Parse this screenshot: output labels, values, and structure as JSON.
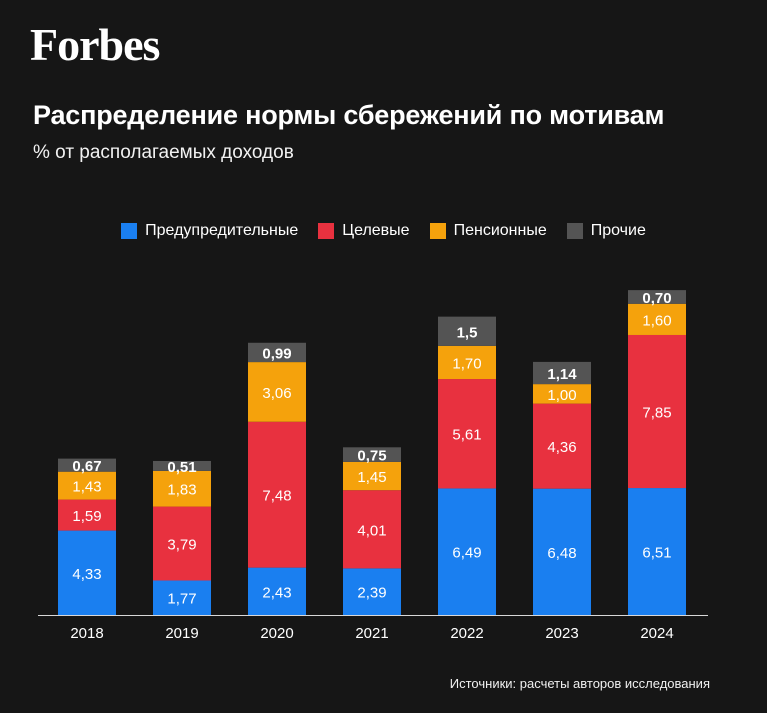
{
  "logo": "Forbes",
  "title": "Распределение нормы сбережений по мотивам",
  "subtitle": "% от располагаемых доходов",
  "source": "Источники: расчеты авторов исследования",
  "colors": {
    "background": "#161616",
    "precautionary": "#1a7ff0",
    "target": "#e8313f",
    "pension": "#f5a20c",
    "other": "#545454"
  },
  "chart_data": {
    "type": "bar",
    "stacked": true,
    "categories": [
      "2018",
      "2019",
      "2020",
      "2021",
      "2022",
      "2023",
      "2024"
    ],
    "series": [
      {
        "name": "Предупредительные",
        "color": "#1a7ff0",
        "values": [
          4.33,
          1.77,
          2.43,
          2.39,
          6.49,
          6.48,
          6.51
        ],
        "labels": [
          "4,33",
          "1,77",
          "2,43",
          "2,39",
          "6,49",
          "6,48",
          "6,51"
        ]
      },
      {
        "name": "Целевые",
        "color": "#e8313f",
        "values": [
          1.59,
          3.79,
          7.48,
          4.01,
          5.61,
          4.36,
          7.85
        ],
        "labels": [
          "1,59",
          "3,79",
          "7,48",
          "4,01",
          "5,61",
          "4,36",
          "7,85"
        ]
      },
      {
        "name": "Пенсионные",
        "color": "#f5a20c",
        "values": [
          1.43,
          1.83,
          3.06,
          1.45,
          1.7,
          1.0,
          1.6
        ],
        "labels": [
          "1,43",
          "1,83",
          "3,06",
          "1,45",
          "1,70",
          "1,00",
          "1,60"
        ]
      },
      {
        "name": "Прочие",
        "color": "#545454",
        "values": [
          0.67,
          0.51,
          0.99,
          0.75,
          1.5,
          1.14,
          0.7
        ],
        "labels": [
          "0,67",
          "0,51",
          "0,99",
          "0,75",
          "1,5",
          "1,14",
          "0,70"
        ]
      }
    ],
    "legend": "top",
    "grid": false
  }
}
